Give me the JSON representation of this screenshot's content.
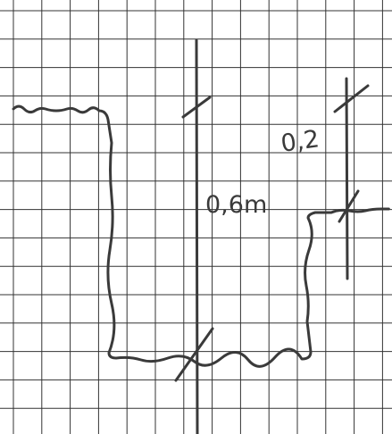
{
  "labels": {
    "width": "0,6m",
    "height": "0,2"
  }
}
